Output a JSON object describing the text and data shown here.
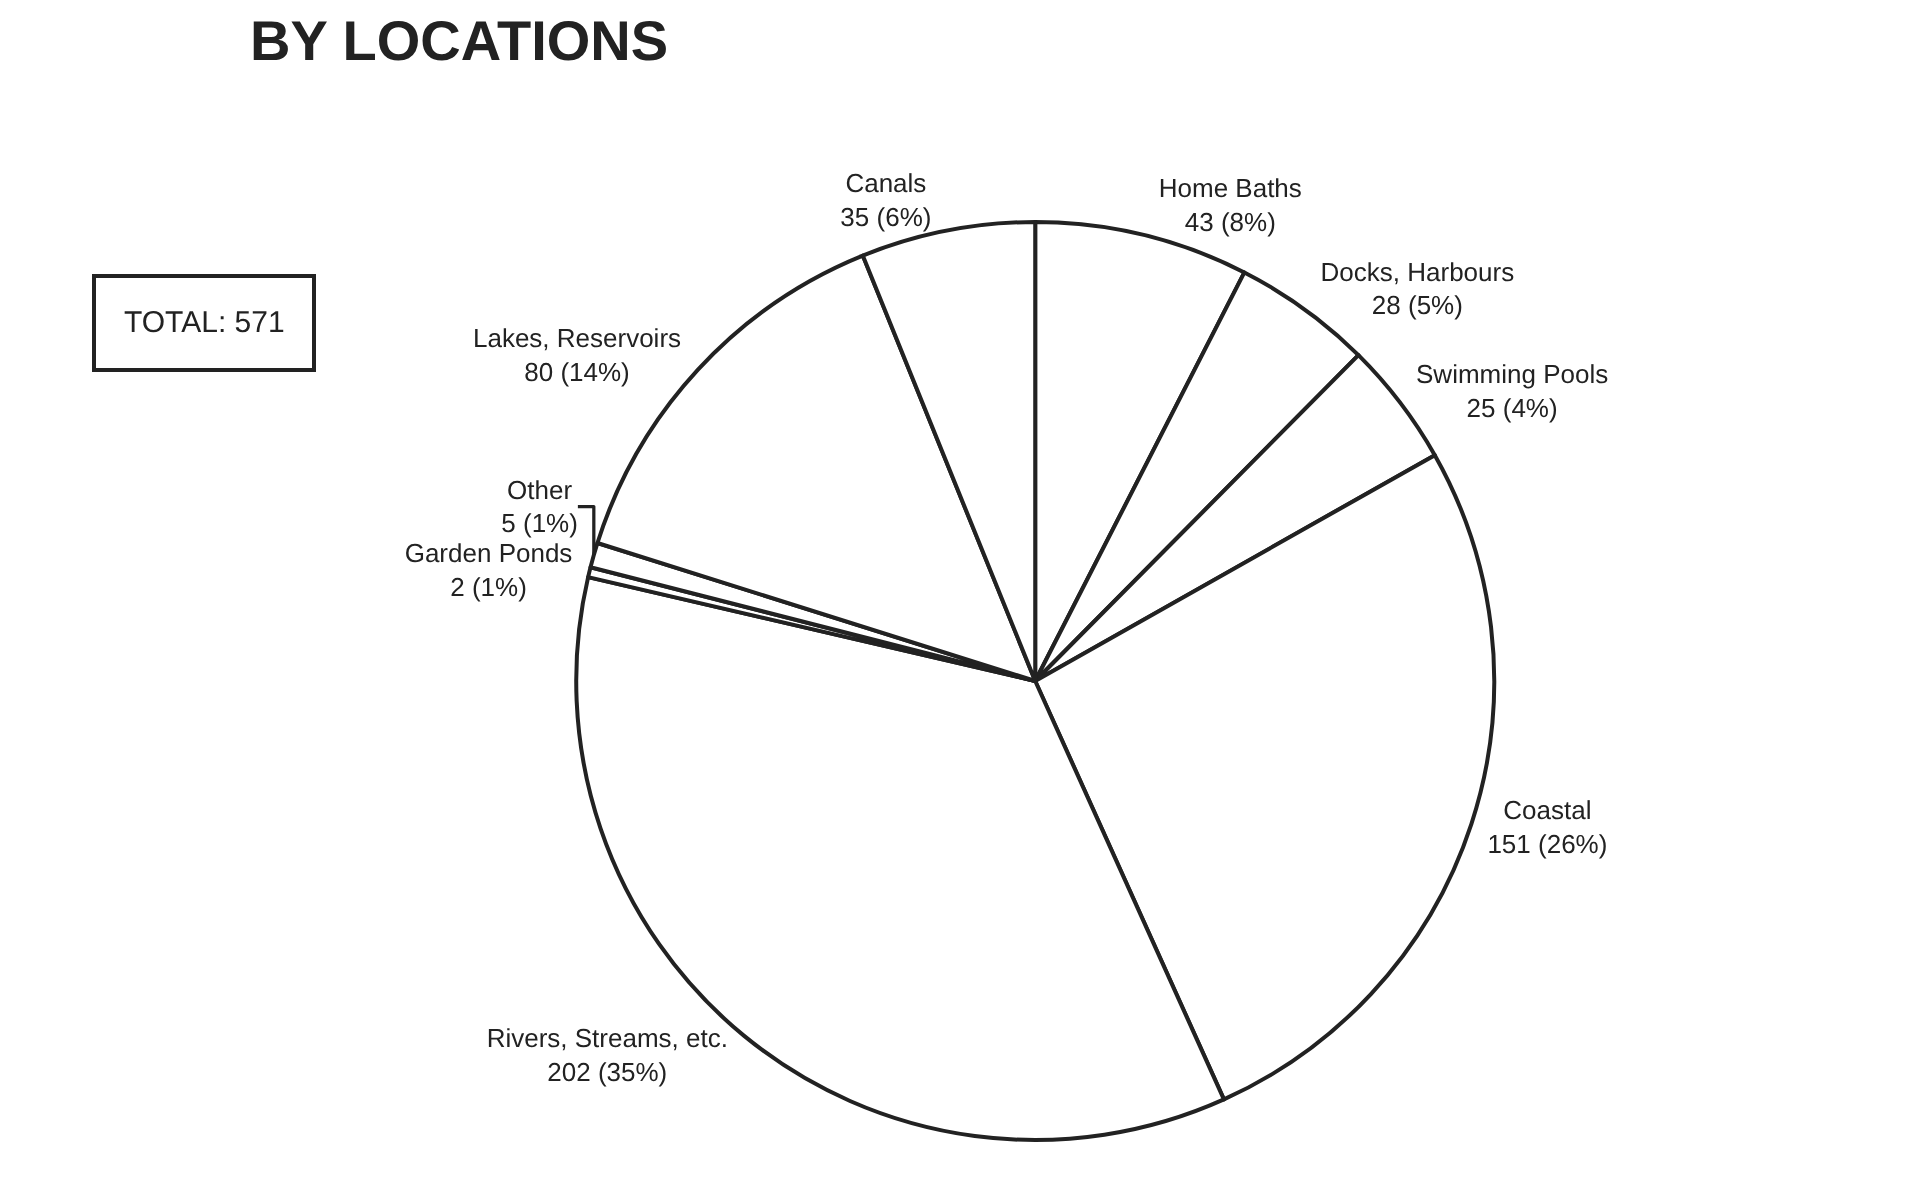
{
  "chart_data": {
    "type": "pie",
    "title": "BY LOCATIONS",
    "categories": [
      "Home Baths",
      "Docks, Harbours",
      "Swimming Pools",
      "Coastal",
      "Rivers, Streams, etc.",
      "Garden Ponds",
      "Other",
      "Lakes, Reservoirs",
      "Canals"
    ],
    "values": [
      43,
      28,
      25,
      151,
      202,
      2,
      5,
      80,
      35
    ],
    "value_labels": [
      "43 (8%)",
      "28 (5%)",
      "25 (4%)",
      "151 (26%)",
      "202 (35%)",
      "2 (1%)",
      "5 (1%)",
      "80 (14%)",
      "35 (6%)"
    ],
    "colors": [
      "#ffffff",
      "#ffffff",
      "#ffffff",
      "#ffffff",
      "#ffffff",
      "#ffffff",
      "#ffffff",
      "#ffffff",
      "#ffffff"
    ],
    "annotations": [
      "TOTAL: 571"
    ],
    "legend": false
  }
}
